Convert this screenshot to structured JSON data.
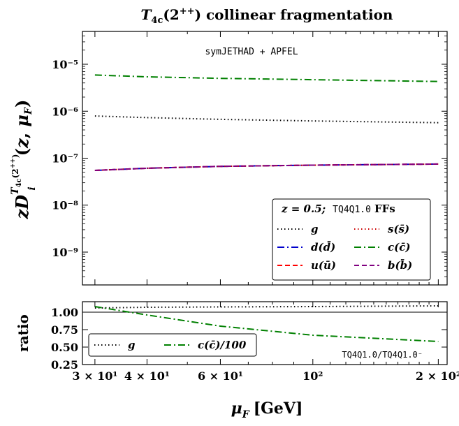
{
  "chart_data": [
    {
      "type": "line",
      "title": "T4c(2++) collinear fragmentation",
      "ylabel": "zD_i^{T4c(2++)}(z, μF)",
      "xscale": "log",
      "yscale": "log",
      "xlim": [
        28,
        210
      ],
      "ylim": [
        2e-10,
        5e-05
      ],
      "x_ticks": [
        {
          "value": 30,
          "label": "3 × 10¹"
        },
        {
          "value": 40,
          "label": "4 × 10¹"
        },
        {
          "value": 60,
          "label": "6 × 10¹"
        },
        {
          "value": 100,
          "label": "10²"
        },
        {
          "value": 200,
          "label": "2 × 10²"
        }
      ],
      "y_ticks": [
        {
          "value": 1e-09,
          "label": "10⁻⁹"
        },
        {
          "value": 1e-08,
          "label": "10⁻⁸"
        },
        {
          "value": 1e-07,
          "label": "10⁻⁷"
        },
        {
          "value": 1e-06,
          "label": "10⁻⁶"
        },
        {
          "value": 1e-05,
          "label": "10⁻⁵"
        }
      ],
      "annotation": "symJETHAD + APFEL",
      "legend": {
        "placement": "lower-right",
        "title_value": "z = 0.5;",
        "title_set": "TQ4Q1.0",
        "title_suffix": "FFs"
      },
      "x": [
        30,
        40,
        60,
        100,
        200
      ],
      "series": [
        {
          "name": "g",
          "style": "dotted",
          "color": "#000000",
          "values": [
            7.9e-07,
            7.3e-07,
            6.7e-07,
            6.2e-07,
            5.7e-07
          ]
        },
        {
          "name": "d(d̄)",
          "style": "dashdot",
          "color": "#0000cc",
          "values": [
            5.5e-08,
            6.1e-08,
            6.7e-08,
            7.1e-08,
            7.5e-08
          ]
        },
        {
          "name": "u(ū)",
          "style": "dashed",
          "color": "#ff0000",
          "values": [
            5.5e-08,
            6.1e-08,
            6.7e-08,
            7.1e-08,
            7.5e-08
          ]
        },
        {
          "name": "s(s̄)",
          "style": "dotted",
          "color": "#cc0000",
          "values": [
            5.5e-08,
            6.1e-08,
            6.7e-08,
            7.1e-08,
            7.5e-08
          ]
        },
        {
          "name": "c(c̄)",
          "style": "dashdot",
          "color": "#008000",
          "values": [
            5.9e-06,
            5.4e-06,
            5e-06,
            4.7e-06,
            4.3e-06
          ]
        },
        {
          "name": "b(b̄)",
          "style": "dashed",
          "color": "#800080",
          "values": [
            5.5e-08,
            6.1e-08,
            6.7e-08,
            7.1e-08,
            7.5e-08
          ]
        }
      ]
    },
    {
      "type": "line",
      "ylabel": "ratio",
      "xlabel": "μF [GeV]",
      "xscale": "log",
      "xlim": [
        28,
        210
      ],
      "ylim": [
        0.25,
        1.15
      ],
      "reference_line": 1.0,
      "y_ticks": [
        {
          "value": 0.25,
          "label": "0.25"
        },
        {
          "value": 0.5,
          "label": "0.50"
        },
        {
          "value": 0.75,
          "label": "0.75"
        },
        {
          "value": 1.0,
          "label": "1.00"
        }
      ],
      "annotation": "TQ4Q1.0/TQ4Q1.0⁻",
      "legend": {
        "placement": "lower-left"
      },
      "x": [
        30,
        40,
        60,
        100,
        200
      ],
      "series": [
        {
          "name": "g",
          "style": "dotted",
          "color": "#000000",
          "values": [
            1.06,
            1.07,
            1.075,
            1.08,
            1.09
          ]
        },
        {
          "name": "c(c̄)/100",
          "style": "dashdot",
          "color": "#008000",
          "values": [
            1.08,
            0.96,
            0.8,
            0.67,
            0.58
          ]
        }
      ]
    }
  ]
}
